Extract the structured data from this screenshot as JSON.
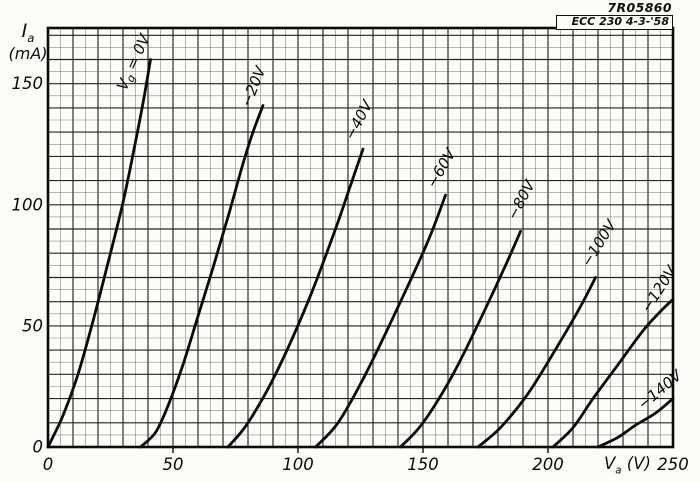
{
  "header": {
    "ref": "7R05860",
    "doc": "ECC 230  4-3-'58"
  },
  "axis_titles": {
    "y_main": "I",
    "y_sub": "a",
    "y_unit": "(mA)",
    "x_main": "V",
    "x_sub": "a",
    "x_unit": " (V)"
  },
  "colors": {
    "ink": "#0a0a0a",
    "grid_major": "#242424",
    "grid_minor": "#6d6d6d",
    "paper": "#fcfcf9"
  },
  "chart_data": {
    "type": "line",
    "title": "",
    "xlabel": "Va (V)",
    "ylabel": "Ia (mA)",
    "xlim": [
      0,
      250
    ],
    "ylim": [
      0,
      173
    ],
    "x_ticks": [
      0,
      50,
      100,
      150,
      200,
      250
    ],
    "y_ticks": [
      0,
      50,
      100,
      150
    ],
    "grid": {
      "minor_step": 5,
      "major_step": 10,
      "style": "graph-paper"
    },
    "legend_position": "labels-on-curves",
    "series": [
      {
        "name": "Vg=0V",
        "label_parts": [
          [
            "V",
            false
          ],
          [
            "g",
            true
          ],
          [
            " = 0V",
            false
          ]
        ],
        "points": [
          [
            0,
            0
          ],
          [
            6,
            13
          ],
          [
            12,
            30
          ],
          [
            18,
            52
          ],
          [
            24,
            76
          ],
          [
            30,
            101
          ],
          [
            35,
            126
          ],
          [
            38,
            142
          ],
          [
            41,
            160
          ]
        ],
        "label_at": [
          36,
          158
        ],
        "label_rot": -66
      },
      {
        "name": "-20V",
        "label_parts": [
          [
            "−20V",
            false
          ]
        ],
        "points": [
          [
            37,
            0
          ],
          [
            43,
            6
          ],
          [
            48,
            17
          ],
          [
            54,
            34
          ],
          [
            60,
            54
          ],
          [
            66,
            74
          ],
          [
            72,
            95
          ],
          [
            78,
            117
          ],
          [
            82,
            130
          ],
          [
            86,
            141
          ]
        ],
        "label_at": [
          84,
          148
        ],
        "label_rot": -68
      },
      {
        "name": "-40V",
        "label_parts": [
          [
            "−40V",
            false
          ]
        ],
        "points": [
          [
            72,
            0
          ],
          [
            80,
            10
          ],
          [
            91,
            30
          ],
          [
            104,
            60
          ],
          [
            115,
            90
          ],
          [
            121,
            108
          ],
          [
            126,
            123
          ]
        ],
        "label_at": [
          126,
          134
        ],
        "label_rot": -62
      },
      {
        "name": "-60V",
        "label_parts": [
          [
            "−60V",
            false
          ]
        ],
        "points": [
          [
            107,
            0
          ],
          [
            116,
            10
          ],
          [
            127,
            30
          ],
          [
            141,
            60
          ],
          [
            152,
            85
          ],
          [
            159,
            104
          ]
        ],
        "label_at": [
          159,
          114
        ],
        "label_rot": -60
      },
      {
        "name": "-80V",
        "label_parts": [
          [
            "−80V",
            false
          ]
        ],
        "points": [
          [
            141,
            0
          ],
          [
            150,
            10
          ],
          [
            162,
            30
          ],
          [
            174,
            55
          ],
          [
            183,
            75
          ],
          [
            189,
            89
          ]
        ],
        "label_at": [
          191,
          101
        ],
        "label_rot": -62
      },
      {
        "name": "-100V",
        "label_parts": [
          [
            "−100V",
            false
          ]
        ],
        "points": [
          [
            172,
            0
          ],
          [
            181,
            8
          ],
          [
            192,
            22
          ],
          [
            204,
            42
          ],
          [
            213,
            58
          ],
          [
            219,
            70
          ]
        ],
        "label_at": [
          222,
          83
        ],
        "label_rot": -58
      },
      {
        "name": "-120V",
        "label_parts": [
          [
            "−120V",
            false
          ]
        ],
        "points": [
          [
            202,
            0
          ],
          [
            210,
            8
          ],
          [
            218,
            20
          ],
          [
            228,
            34
          ],
          [
            238,
            48
          ],
          [
            245,
            56
          ],
          [
            250,
            61
          ]
        ],
        "label_at": [
          246,
          64
        ],
        "label_rot": -57
      },
      {
        "name": "-140V",
        "label_parts": [
          [
            "−140V",
            false
          ]
        ],
        "points": [
          [
            220,
            0
          ],
          [
            228,
            4
          ],
          [
            235,
            9
          ],
          [
            243,
            14
          ],
          [
            250,
            20
          ]
        ],
        "label_at": [
          246,
          22
        ],
        "label_rot": -40
      }
    ]
  }
}
